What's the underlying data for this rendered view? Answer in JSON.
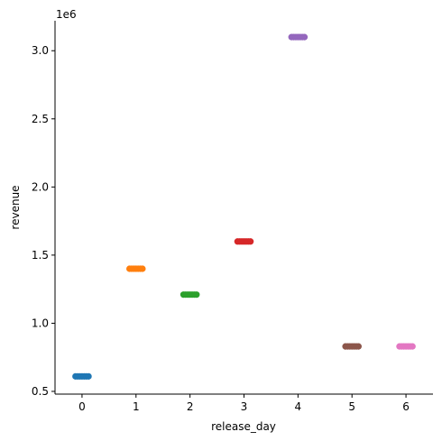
{
  "chart_data": {
    "type": "scatter",
    "xlabel": "release_day",
    "ylabel": "revenue",
    "y_offset_label": "1e6",
    "x_ticks": [
      "0",
      "1",
      "2",
      "3",
      "4",
      "5",
      "6"
    ],
    "y_ticks": [
      {
        "value": 0.5,
        "label": "0.5"
      },
      {
        "value": 1.0,
        "label": "1.0"
      },
      {
        "value": 1.5,
        "label": "1.5"
      },
      {
        "value": 2.0,
        "label": "2.0"
      },
      {
        "value": 2.5,
        "label": "2.5"
      },
      {
        "value": 3.0,
        "label": "3.0"
      }
    ],
    "xlim": [
      -0.5,
      6.5
    ],
    "ylim": [
      0.48,
      3.22
    ],
    "grid": false,
    "points": [
      {
        "x": 0,
        "y": 0.61,
        "color": "#1f77b4"
      },
      {
        "x": 1,
        "y": 1.4,
        "color": "#ff7f0e"
      },
      {
        "x": 2,
        "y": 1.21,
        "color": "#2ca02c"
      },
      {
        "x": 3,
        "y": 1.6,
        "color": "#d62728"
      },
      {
        "x": 4,
        "y": 3.1,
        "color": "#9467bd"
      },
      {
        "x": 5,
        "y": 0.83,
        "color": "#8c564b"
      },
      {
        "x": 6,
        "y": 0.83,
        "color": "#e377c2"
      }
    ]
  }
}
